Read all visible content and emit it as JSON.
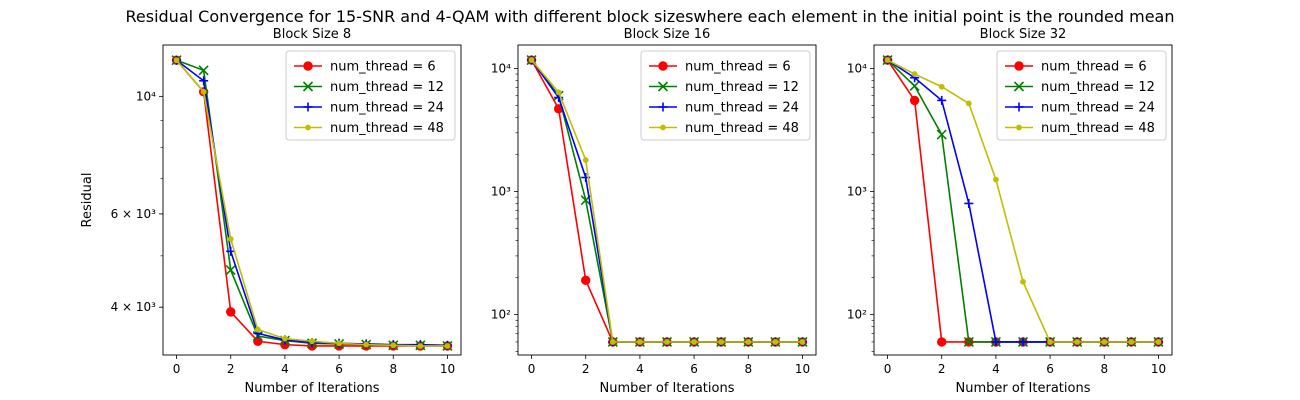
{
  "suptitle": "Residual Convergence for 15-SNR and 4-QAM with different block sizeswhere each element in the initial point is the rounded mean",
  "series_styles": [
    {
      "color": "#ff0000",
      "marker": "circle"
    },
    {
      "color": "#008000",
      "marker": "x"
    },
    {
      "color": "#0000ff",
      "marker": "plus"
    },
    {
      "color": "#bfbf00",
      "marker": "point"
    }
  ],
  "chart_data": [
    {
      "type": "line",
      "title": "Block Size 8",
      "xlabel": "Number of Iterations",
      "ylabel": "Residual",
      "yscale": "log",
      "xlim": [
        -0.5,
        10.5
      ],
      "ylim": [
        3250,
        12500
      ],
      "xticks": [
        0,
        2,
        4,
        6,
        8,
        10
      ],
      "yticks": [
        {
          "value": 4000,
          "label": "4 × 10³"
        },
        {
          "value": 6000,
          "label": "6 × 10³"
        },
        {
          "value": 10000,
          "label": "10⁴"
        }
      ],
      "grid": false,
      "legend": "upper right",
      "x": [
        0,
        1,
        2,
        3,
        4,
        5,
        6,
        7,
        8,
        9,
        10
      ],
      "series": [
        {
          "name": "num_thread = 6",
          "values": [
            11700,
            10200,
            3920,
            3450,
            3400,
            3380,
            3380,
            3380,
            3380,
            3380,
            3380
          ]
        },
        {
          "name": "num_thread = 12",
          "values": [
            11700,
            11200,
            4700,
            3530,
            3460,
            3420,
            3410,
            3400,
            3390,
            3390,
            3380
          ]
        },
        {
          "name": "num_thread = 24",
          "values": [
            11700,
            10700,
            5100,
            3570,
            3470,
            3430,
            3420,
            3410,
            3400,
            3400,
            3390
          ]
        },
        {
          "name": "num_thread = 48",
          "values": [
            11700,
            10200,
            5380,
            3630,
            3490,
            3450,
            3420,
            3400,
            3390,
            3380,
            3380
          ]
        }
      ]
    },
    {
      "type": "line",
      "title": "Block Size 16",
      "xlabel": "Number of Iterations",
      "ylabel": "",
      "yscale": "log",
      "xlim": [
        -0.5,
        10.5
      ],
      "ylim": [
        47,
        15500
      ],
      "xticks": [
        0,
        2,
        4,
        6,
        8,
        10
      ],
      "yticks": [
        {
          "value": 100,
          "label": "10²"
        },
        {
          "value": 1000,
          "label": "10³"
        },
        {
          "value": 10000,
          "label": "10⁴"
        }
      ],
      "grid": false,
      "legend": "upper right",
      "x": [
        0,
        1,
        2,
        3,
        4,
        5,
        6,
        7,
        8,
        9,
        10
      ],
      "series": [
        {
          "name": "num_thread = 6",
          "values": [
            11700,
            4700,
            190,
            60,
            60,
            60,
            60,
            60,
            60,
            60,
            60
          ]
        },
        {
          "name": "num_thread = 12",
          "values": [
            11700,
            6000,
            850,
            60,
            60,
            60,
            60,
            60,
            60,
            60,
            60
          ]
        },
        {
          "name": "num_thread = 24",
          "values": [
            11700,
            5800,
            1300,
            60,
            60,
            60,
            60,
            60,
            60,
            60,
            60
          ]
        },
        {
          "name": "num_thread = 48",
          "values": [
            11700,
            6400,
            1800,
            60,
            60,
            60,
            60,
            60,
            60,
            60,
            60
          ]
        }
      ]
    },
    {
      "type": "line",
      "title": "Block Size 32",
      "xlabel": "Number of Iterations",
      "ylabel": "",
      "yscale": "log",
      "xlim": [
        -0.5,
        10.5
      ],
      "ylim": [
        47,
        15500
      ],
      "xticks": [
        0,
        2,
        4,
        6,
        8,
        10
      ],
      "yticks": [
        {
          "value": 100,
          "label": "10²"
        },
        {
          "value": 1000,
          "label": "10³"
        },
        {
          "value": 10000,
          "label": "10⁴"
        }
      ],
      "grid": false,
      "legend": "upper right",
      "x": [
        0,
        1,
        2,
        3,
        4,
        5,
        6,
        7,
        8,
        9,
        10
      ],
      "series": [
        {
          "name": "num_thread = 6",
          "values": [
            11700,
            5500,
            60,
            60,
            60,
            60,
            60,
            60,
            60,
            60,
            60
          ]
        },
        {
          "name": "num_thread = 12",
          "values": [
            11700,
            7200,
            2900,
            60,
            60,
            60,
            60,
            60,
            60,
            60,
            60
          ]
        },
        {
          "name": "num_thread = 24",
          "values": [
            11700,
            8400,
            5500,
            800,
            60,
            60,
            60,
            60,
            60,
            60,
            60
          ]
        },
        {
          "name": "num_thread = 48",
          "values": [
            11700,
            9000,
            7100,
            5200,
            1250,
            185,
            60,
            60,
            60,
            60,
            60
          ]
        }
      ]
    }
  ]
}
